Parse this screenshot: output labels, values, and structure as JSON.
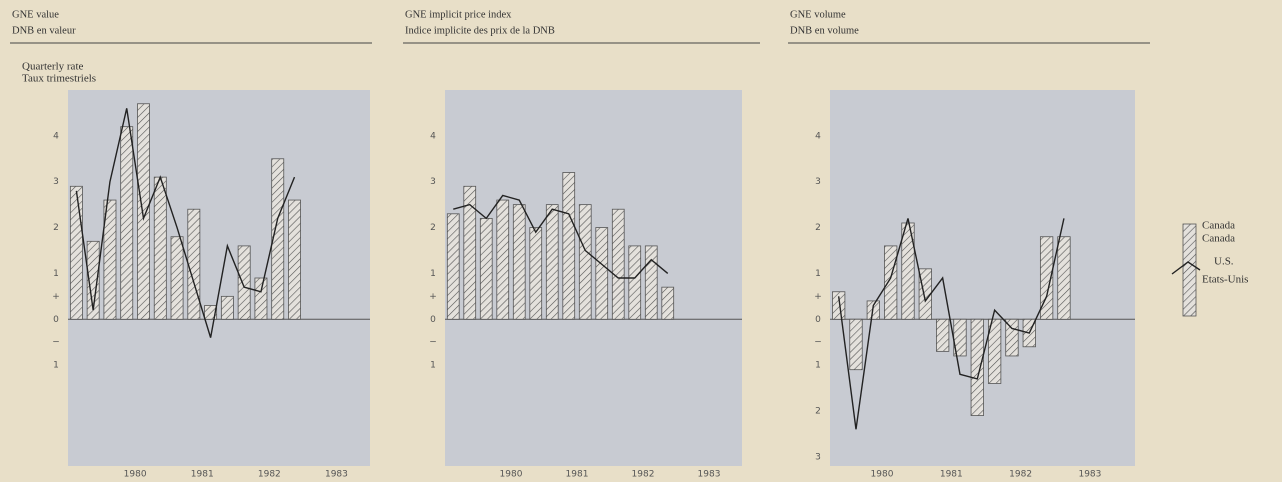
{
  "chart_data": [
    {
      "type": "bar",
      "title": "GNE value",
      "subtitle": "DNB en valeur",
      "y_label": [
        "Quarterly rate",
        "Taux trimestriels"
      ],
      "x": [
        1979.125,
        1979.375,
        1979.625,
        1979.875,
        1980.125,
        1980.375,
        1980.625,
        1980.875,
        1981.125,
        1981.375,
        1981.625,
        1981.875,
        1982.125,
        1982.375
      ],
      "series": [
        {
          "name": "Canada",
          "type": "bar",
          "color": "#555555",
          "values": [
            2.9,
            1.7,
            2.6,
            4.2,
            4.7,
            3.1,
            1.8,
            2.4,
            0.3,
            0.5,
            1.6,
            0.9,
            3.5,
            2.6
          ]
        },
        {
          "name": "U.S.",
          "type": "line",
          "color": "#222222",
          "values": [
            2.8,
            0.2,
            3.0,
            4.6,
            2.2,
            3.1,
            2.0,
            0.8,
            -0.4,
            1.6,
            0.7,
            0.6,
            2.2,
            3.1
          ]
        }
      ],
      "xlim": [
        1979,
        1983.5
      ],
      "xticks": [
        1980,
        1981,
        1982,
        1983
      ],
      "ylim": [
        -3.2,
        5
      ],
      "yticks": [
        4,
        3,
        2,
        1,
        {
          "value": 0.5,
          "label": "+"
        },
        0,
        {
          "value": -0.5,
          "label": "−"
        },
        {
          "value": -1,
          "label": "1"
        }
      ]
    },
    {
      "type": "bar",
      "title": "GNE implicit price index",
      "subtitle": "Indice implicite des prix de la DNB",
      "x": [
        1979.125,
        1979.375,
        1979.625,
        1979.875,
        1980.125,
        1980.375,
        1980.625,
        1980.875,
        1981.125,
        1981.375,
        1981.625,
        1981.875,
        1982.125,
        1982.375
      ],
      "series": [
        {
          "name": "Canada",
          "type": "bar",
          "color": "#555555",
          "values": [
            2.3,
            2.9,
            2.2,
            2.6,
            2.5,
            2.0,
            2.5,
            3.2,
            2.5,
            2.0,
            2.4,
            1.6,
            1.6,
            0.7
          ]
        },
        {
          "name": "U.S.",
          "type": "line",
          "color": "#222222",
          "values": [
            2.4,
            2.5,
            2.2,
            2.7,
            2.6,
            1.9,
            2.4,
            2.3,
            1.5,
            1.2,
            0.9,
            0.9,
            1.3,
            1.0
          ]
        }
      ],
      "xlim": [
        1979,
        1983.5
      ],
      "xticks": [
        1980,
        1981,
        1982,
        1983
      ],
      "ylim": [
        -3.2,
        5
      ],
      "yticks": [
        4,
        3,
        2,
        1,
        {
          "value": 0.5,
          "label": "+"
        },
        0,
        {
          "value": -0.5,
          "label": "−"
        },
        {
          "value": -1,
          "label": "1"
        }
      ]
    },
    {
      "type": "bar",
      "title": "GNE volume",
      "subtitle": "DNB en volume",
      "x": [
        1979.375,
        1979.625,
        1979.875,
        1980.125,
        1980.375,
        1980.625,
        1980.875,
        1981.125,
        1981.375,
        1981.625,
        1981.875,
        1982.125,
        1982.375,
        1982.625
      ],
      "series": [
        {
          "name": "Canada",
          "type": "bar",
          "color": "#555555",
          "values": [
            0.6,
            -1.1,
            0.4,
            1.6,
            2.1,
            1.1,
            -0.7,
            -0.8,
            -2.1,
            -1.4,
            -0.8,
            -0.6,
            1.8,
            1.8
          ]
        },
        {
          "name": "U.S.",
          "type": "line",
          "color": "#222222",
          "values": [
            0.5,
            -2.4,
            0.3,
            0.9,
            2.2,
            0.4,
            0.9,
            -1.2,
            -1.3,
            0.2,
            -0.2,
            -0.3,
            0.5,
            2.2
          ]
        }
      ],
      "xlim": [
        1979.25,
        1983.65
      ],
      "xticks": [
        1980,
        1981,
        1982,
        1983
      ],
      "ylim": [
        -3.2,
        5
      ],
      "yticks": [
        4,
        3,
        2,
        1,
        {
          "value": 0.5,
          "label": "+"
        },
        0,
        {
          "value": -0.5,
          "label": "−"
        },
        {
          "value": -1,
          "label": "1"
        },
        {
          "value": -2,
          "label": "2"
        },
        {
          "value": -3,
          "label": "3"
        }
      ]
    }
  ],
  "legend": [
    [
      "Canada",
      "Canada"
    ],
    [
      "U.S.",
      "Etats-Unis"
    ]
  ]
}
